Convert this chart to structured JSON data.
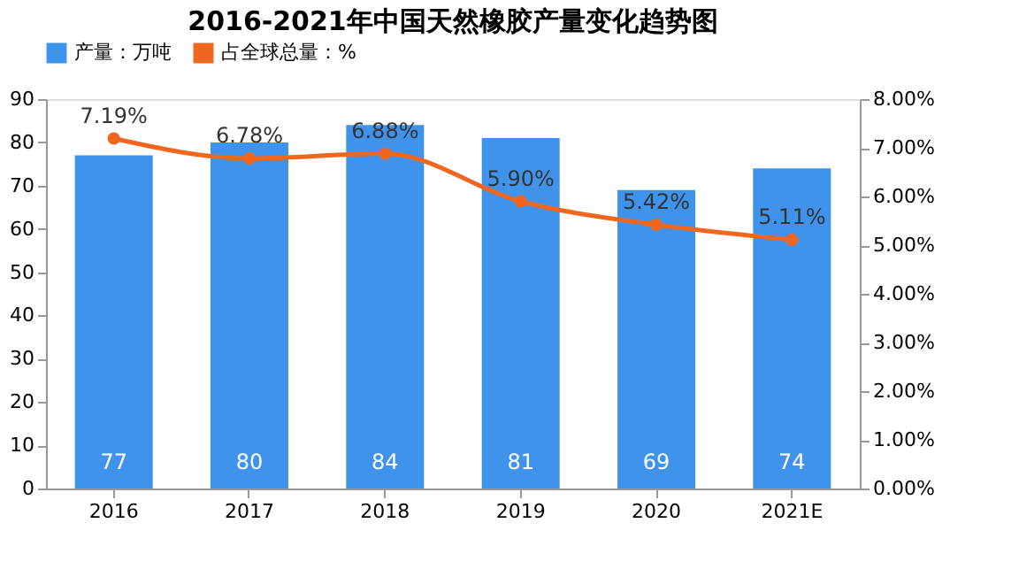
{
  "chart_data": {
    "type": "bar",
    "title": "2016-2021年中国天然橡胶产量变化趋势图",
    "categories": [
      "2016",
      "2017",
      "2018",
      "2019",
      "2020",
      "2021E"
    ],
    "series": [
      {
        "name": "产量：万吨",
        "color": "#3f93ea",
        "values": [
          77,
          80,
          84,
          81,
          69,
          74
        ],
        "value_labels": [
          "77",
          "80",
          "84",
          "81",
          "69",
          "74"
        ]
      },
      {
        "name": "占全球总量：%",
        "type": "line",
        "axis": "y2",
        "color": "#f0661f",
        "values": [
          7.19,
          6.78,
          6.88,
          5.9,
          5.42,
          5.11
        ],
        "value_labels": [
          "7.19%",
          "6.78%",
          "6.88%",
          "5.90%",
          "5.42%",
          "5.11%"
        ]
      }
    ],
    "ylim": [
      0,
      90
    ],
    "yticks": [
      0,
      10,
      20,
      30,
      40,
      50,
      60,
      70,
      80,
      90
    ],
    "y2lim": [
      0,
      8
    ],
    "y2ticks": [
      {
        "value": 0,
        "label": "0.00%"
      },
      {
        "value": 1,
        "label": "1.00%"
      },
      {
        "value": 2,
        "label": "2.00%"
      },
      {
        "value": 3,
        "label": "3.00%"
      },
      {
        "value": 4,
        "label": "4.00%"
      },
      {
        "value": 5,
        "label": "5.00%"
      },
      {
        "value": 6,
        "label": "6.00%"
      },
      {
        "value": 7,
        "label": "7.00%"
      },
      {
        "value": 8,
        "label": "8.00%"
      }
    ],
    "marker": "circle",
    "grid": false,
    "legend": "top"
  }
}
